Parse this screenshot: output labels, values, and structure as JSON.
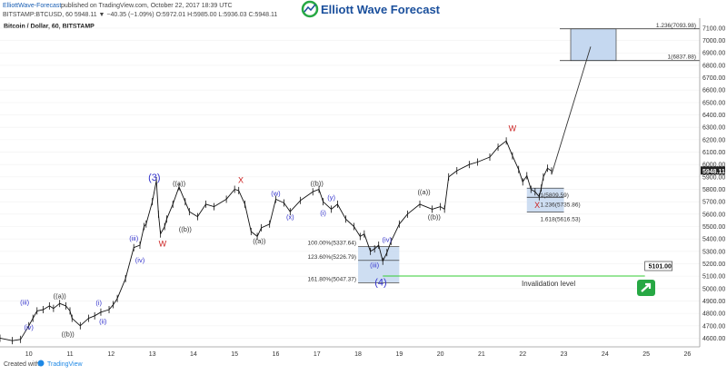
{
  "header": {
    "publisher": "ElliottWave-Forecast",
    "published_text": "published on TradingView.com, October 22, 2017 18:39 UTC",
    "symbol_line": "BITSTAMP:BTCUSD, 60  5948.11  ▼  −40.35 (−1.09%)  O:5972.01  H:5985.00  L:5936.03  C:5948.11",
    "logo_text": "Elliott Wave Forecast"
  },
  "chart_title": "Bitcoin / Dollar, 60, BITSTAMP",
  "footer": {
    "created_with": "Created with",
    "tradingview": "TradingView"
  },
  "colors": {
    "wave_label": "#3333cc",
    "corrective_label": "#333333",
    "red_label": "#cc2222",
    "zone_fill": "#c5d8f0",
    "zone_border": "#222222",
    "invalidation_line": "#33cc33",
    "logo_green": "#27a844",
    "logo_blue": "#1a4f9c"
  },
  "chart_data": {
    "type": "line",
    "title": "Bitcoin / Dollar, 60, BITSTAMP",
    "x_tick_labels": [
      "10",
      "11",
      "12",
      "13",
      "14",
      "15",
      "16",
      "17",
      "18",
      "19",
      "20",
      "21",
      "22",
      "23",
      "24",
      "25",
      "26"
    ],
    "y_tick_values": [
      4600,
      4700,
      4800,
      4900,
      5000,
      5100,
      5200,
      5300,
      5400,
      5500,
      5600,
      5700,
      5800,
      5900,
      6000,
      6100,
      6200,
      6300,
      6400,
      6500,
      6600,
      6700,
      6800,
      6900,
      7000,
      7100
    ],
    "ylim": [
      4530,
      7180
    ],
    "xlim": [
      9.3,
      26.3
    ],
    "last_price": "5948.11",
    "series": [
      {
        "x": [
          9.3,
          9.6,
          9.8,
          10.0,
          10.1,
          10.2,
          10.35,
          10.5,
          10.6,
          10.75,
          10.9,
          11.0,
          11.05,
          11.25,
          11.45,
          11.6,
          11.75,
          11.95,
          12.05,
          12.15,
          12.35,
          12.55,
          12.7,
          12.8,
          12.85,
          13.0,
          13.1,
          13.15,
          13.2,
          13.3,
          13.35,
          13.5,
          13.65,
          13.8,
          13.9,
          14.1,
          14.3,
          14.5,
          14.8,
          15.0,
          15.1,
          15.25,
          15.4,
          15.55,
          15.65,
          15.85,
          16.0,
          16.2,
          16.35,
          16.6,
          16.9,
          17.05,
          17.15,
          17.35,
          17.5,
          17.7,
          17.9,
          18.05,
          18.15,
          18.3,
          18.4,
          18.5,
          18.6,
          18.7,
          18.8,
          19.0,
          19.2,
          19.5,
          19.8,
          20.0,
          20.1,
          20.2,
          20.4,
          20.7,
          20.9,
          21.2,
          21.4,
          21.6,
          21.75,
          21.9,
          22.0,
          22.1,
          22.2,
          22.3,
          22.4,
          22.45,
          22.5,
          22.6,
          22.7
        ],
        "values": [
          4600,
          4580,
          4590,
          4700,
          4760,
          4820,
          4830,
          4860,
          4840,
          4880,
          4860,
          4820,
          4760,
          4700,
          4760,
          4780,
          4810,
          4830,
          4870,
          4920,
          5080,
          5330,
          5350,
          5500,
          5520,
          5700,
          5870,
          5600,
          5440,
          5500,
          5560,
          5680,
          5820,
          5700,
          5620,
          5580,
          5680,
          5660,
          5720,
          5800,
          5790,
          5680,
          5460,
          5420,
          5490,
          5520,
          5720,
          5690,
          5620,
          5710,
          5780,
          5800,
          5700,
          5640,
          5680,
          5560,
          5500,
          5420,
          5440,
          5300,
          5320,
          5350,
          5220,
          5290,
          5380,
          5520,
          5600,
          5680,
          5640,
          5660,
          5640,
          5900,
          5950,
          6000,
          6020,
          6060,
          6140,
          6190,
          6070,
          5960,
          5860,
          5910,
          5800,
          5780,
          5740,
          5810,
          5900,
          5970,
          5948
        ]
      }
    ],
    "projection": {
      "x": [
        22.7,
        23.65
      ],
      "values": [
        5920,
        6950
      ]
    },
    "wave_labels": [
      {
        "text": "(iii)",
        "x": 9.9,
        "y": 4870,
        "kind": "blue"
      },
      {
        "text": "(iv)",
        "x": 10.0,
        "y": 4670,
        "kind": "blue"
      },
      {
        "text": "((a))",
        "x": 10.75,
        "y": 4920,
        "kind": "dark"
      },
      {
        "text": "((b))",
        "x": 10.95,
        "y": 4615,
        "kind": "dark"
      },
      {
        "text": "(i)",
        "x": 11.7,
        "y": 4865,
        "kind": "blue"
      },
      {
        "text": "(ii)",
        "x": 11.8,
        "y": 4715,
        "kind": "blue"
      },
      {
        "text": "(iii)",
        "x": 12.55,
        "y": 5385,
        "kind": "blue"
      },
      {
        "text": "(iv)",
        "x": 12.7,
        "y": 5210,
        "kind": "blue"
      },
      {
        "text": "(3)",
        "x": 13.05,
        "y": 5870,
        "kind": "big"
      },
      {
        "text": "W",
        "x": 13.25,
        "y": 5340,
        "kind": "red"
      },
      {
        "text": "((a))",
        "x": 13.65,
        "y": 5830,
        "kind": "dark"
      },
      {
        "text": "((b))",
        "x": 13.8,
        "y": 5460,
        "kind": "dark"
      },
      {
        "text": "X",
        "x": 15.15,
        "y": 5850,
        "kind": "red"
      },
      {
        "text": "((a))",
        "x": 15.6,
        "y": 5365,
        "kind": "dark"
      },
      {
        "text": "(w)",
        "x": 16.0,
        "y": 5750,
        "kind": "blue"
      },
      {
        "text": "(x)",
        "x": 16.35,
        "y": 5560,
        "kind": "blue"
      },
      {
        "text": "((b))",
        "x": 17.0,
        "y": 5830,
        "kind": "dark"
      },
      {
        "text": "(y)",
        "x": 17.35,
        "y": 5715,
        "kind": "blue"
      },
      {
        "text": "(i)",
        "x": 17.15,
        "y": 5590,
        "kind": "blue"
      },
      {
        "text": "(iii)",
        "x": 18.4,
        "y": 5170,
        "kind": "blue"
      },
      {
        "text": "(iv)",
        "x": 18.7,
        "y": 5375,
        "kind": "blue"
      },
      {
        "text": "(4)",
        "x": 18.55,
        "y": 5025,
        "kind": "big"
      },
      {
        "text": "((a))",
        "x": 19.6,
        "y": 5760,
        "kind": "dark"
      },
      {
        "text": "((b))",
        "x": 19.85,
        "y": 5560,
        "kind": "dark"
      },
      {
        "text": "W",
        "x": 21.75,
        "y": 6270,
        "kind": "red"
      },
      {
        "text": "X",
        "x": 22.35,
        "y": 5650,
        "kind": "red"
      }
    ],
    "fib_zones": [
      {
        "x0": 18.0,
        "x1": 19.0,
        "levels": [
          {
            "label": "100.00%(5337.64)",
            "value": 5337.64
          },
          {
            "label": "123.60%(5226.79)",
            "value": 5226.79
          },
          {
            "label": "161.80%(5047.37)",
            "value": 5047.37
          }
        ]
      },
      {
        "x0": 22.1,
        "x1": 23.0,
        "levels": [
          {
            "label": "1(5809.59)",
            "value": 5809.59
          },
          {
            "label": "1.236(5735.86)",
            "value": 5735.86
          },
          {
            "label": "1.618(5616.53)",
            "value": 5616.53
          }
        ]
      },
      {
        "x0": 22.9,
        "x1": 26.3,
        "levels": [
          {
            "label": "1.236(7093.98)",
            "value": 7093.98
          },
          {
            "label": "1(6837.88)",
            "value": 6837.88
          }
        ]
      }
    ],
    "invalidation": {
      "label": "Invalidation level",
      "value_label": "5101.00",
      "value": 5101.0,
      "x0": 18.6,
      "x1": 25.1
    }
  }
}
